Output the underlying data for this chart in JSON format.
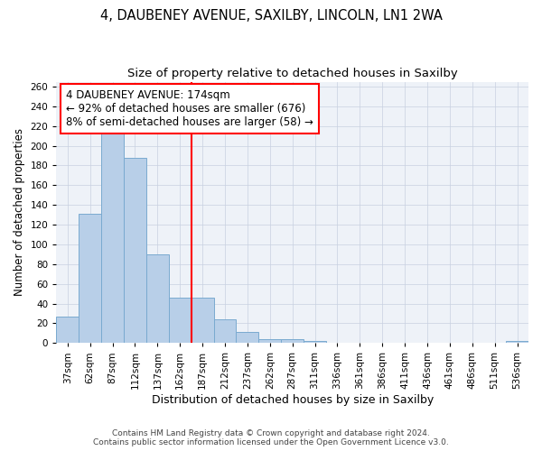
{
  "title1": "4, DAUBENEY AVENUE, SAXILBY, LINCOLN, LN1 2WA",
  "title2": "Size of property relative to detached houses in Saxilby",
  "xlabel": "Distribution of detached houses by size in Saxilby",
  "ylabel": "Number of detached properties",
  "categories": [
    "37sqm",
    "62sqm",
    "87sqm",
    "112sqm",
    "137sqm",
    "162sqm",
    "187sqm",
    "212sqm",
    "237sqm",
    "262sqm",
    "287sqm",
    "311sqm",
    "336sqm",
    "361sqm",
    "386sqm",
    "411sqm",
    "436sqm",
    "461sqm",
    "486sqm",
    "511sqm",
    "536sqm"
  ],
  "values": [
    27,
    131,
    213,
    188,
    90,
    46,
    46,
    24,
    11,
    4,
    4,
    2,
    0,
    0,
    0,
    0,
    0,
    0,
    0,
    0,
    2
  ],
  "bar_color": "#b8cfe8",
  "bar_edge_color": "#7aaad0",
  "property_line_color": "red",
  "annotation_text": "4 DAUBENEY AVENUE: 174sqm\n← 92% of detached houses are smaller (676)\n8% of semi-detached houses are larger (58) →",
  "annotation_box_color": "white",
  "annotation_box_edge": "red",
  "ylim": [
    0,
    265
  ],
  "yticks": [
    0,
    20,
    40,
    60,
    80,
    100,
    120,
    140,
    160,
    180,
    200,
    220,
    240,
    260
  ],
  "footer": "Contains HM Land Registry data © Crown copyright and database right 2024.\nContains public sector information licensed under the Open Government Licence v3.0.",
  "fig_background_color": "#ffffff",
  "plot_background": "#eef2f8",
  "grid_color": "#c8d0e0",
  "title1_fontsize": 10.5,
  "title2_fontsize": 9.5,
  "xlabel_fontsize": 9,
  "ylabel_fontsize": 8.5,
  "tick_fontsize": 7.5,
  "footer_fontsize": 6.5
}
